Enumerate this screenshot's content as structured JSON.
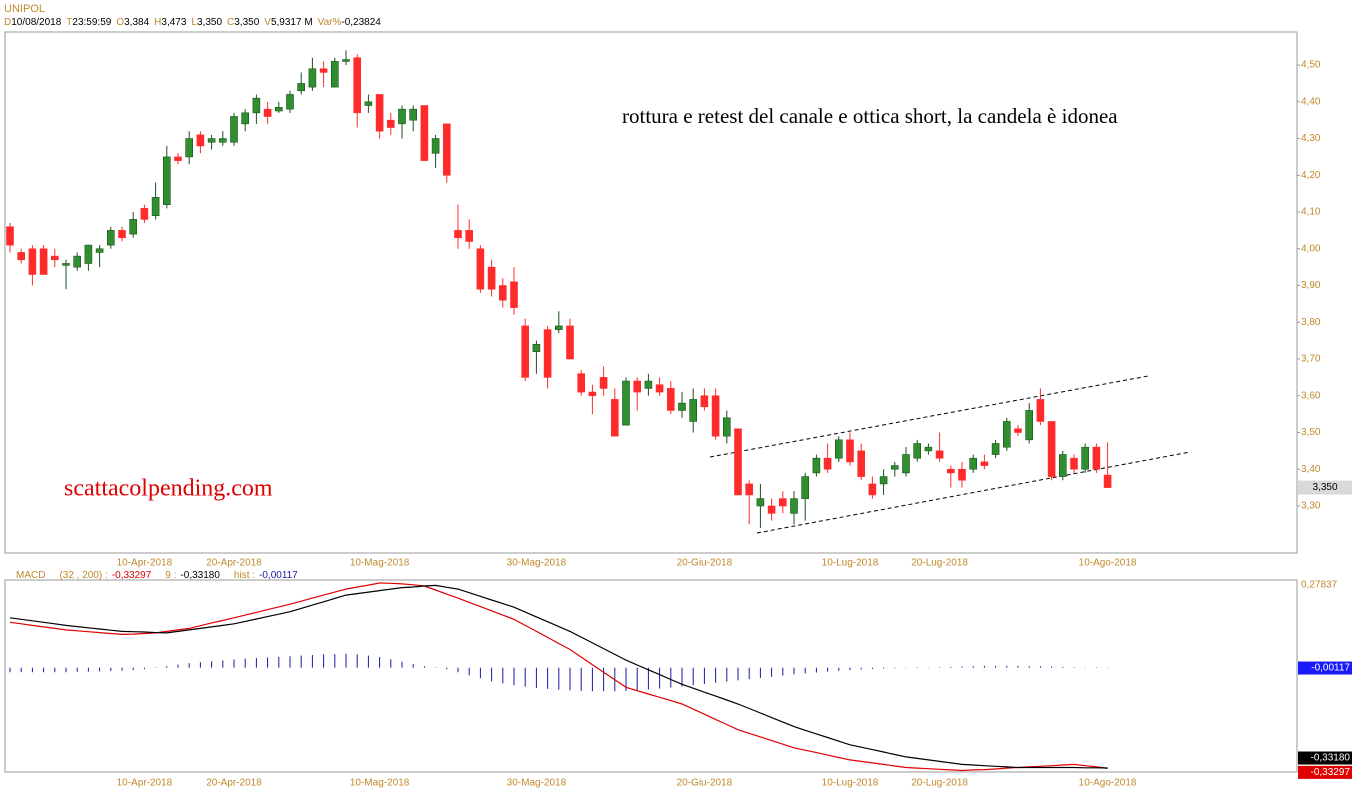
{
  "chart_data": [
    {
      "type": "candlestick",
      "title": "UNIPOL",
      "info": [
        [
          "D",
          "10/08/2018"
        ],
        [
          "T",
          "23:59:59"
        ],
        [
          "O",
          "3,384"
        ],
        [
          "H",
          "3,473"
        ],
        [
          "L",
          "3,350"
        ],
        [
          "C",
          "3,350"
        ],
        [
          "V",
          "5,9317 M"
        ],
        [
          "Var%",
          "-0,23824"
        ]
      ],
      "annotations": [
        "rottura e retest del canale e ottica short, la candela è idonea",
        "scattacolpending.com"
      ],
      "categories": [
        null,
        null,
        null,
        null,
        null,
        null,
        null,
        null,
        null,
        null,
        null,
        null,
        "10-Apr-2018",
        null,
        null,
        null,
        null,
        null,
        null,
        null,
        "20-Apr-2018",
        null,
        null,
        null,
        null,
        null,
        null,
        null,
        null,
        null,
        null,
        null,
        null,
        "10-Mag-2018",
        null,
        null,
        null,
        null,
        null,
        null,
        null,
        null,
        null,
        null,
        null,
        null,
        null,
        "30-Mag-2018",
        null,
        null,
        null,
        null,
        null,
        null,
        null,
        null,
        null,
        null,
        null,
        null,
        null,
        null,
        "20-Giu-2018",
        null,
        null,
        null,
        null,
        null,
        null,
        null,
        null,
        null,
        null,
        null,
        null,
        "10-Lug-2018",
        null,
        null,
        null,
        null,
        null,
        null,
        null,
        "20-Lug-2018",
        null,
        null,
        null,
        null,
        null,
        null,
        null,
        null,
        null,
        null,
        null,
        null,
        null,
        null,
        "10-Ago-2018"
      ],
      "open": [
        4.06,
        3.99,
        4.0,
        4.0,
        3.98,
        3.955,
        3.95,
        3.96,
        3.99,
        4.01,
        4.05,
        4.04,
        4.11,
        4.09,
        4.12,
        4.25,
        4.25,
        4.31,
        4.29,
        4.29,
        4.29,
        4.34,
        4.37,
        4.38,
        4.375,
        4.38,
        4.43,
        4.44,
        4.49,
        4.44,
        4.51,
        4.52,
        4.39,
        4.42,
        4.35,
        4.34,
        4.35,
        4.39,
        4.26,
        4.34,
        4.05,
        4.05,
        4.0,
        3.95,
        3.9,
        3.91,
        3.79,
        3.72,
        3.78,
        3.78,
        3.79,
        3.66,
        3.61,
        3.65,
        3.59,
        3.52,
        3.64,
        3.62,
        3.63,
        3.62,
        3.56,
        3.53,
        3.6,
        3.6,
        3.49,
        3.51,
        3.36,
        3.3,
        3.3,
        3.32,
        3.28,
        3.32,
        3.39,
        3.43,
        3.43,
        3.48,
        3.45,
        3.36,
        3.36,
        3.4,
        3.39,
        3.43,
        3.45,
        3.45,
        3.4,
        3.4,
        3.4,
        3.42,
        3.44,
        3.46,
        3.51,
        3.48,
        3.59,
        3.53,
        3.38,
        3.43,
        3.4,
        3.46,
        3.384
      ],
      "high": [
        4.07,
        4.0,
        4.01,
        4.01,
        4.0,
        3.97,
        3.99,
        4.01,
        4.01,
        4.06,
        4.06,
        4.1,
        4.12,
        4.18,
        4.28,
        4.26,
        4.32,
        4.32,
        4.31,
        4.32,
        4.37,
        4.38,
        4.42,
        4.4,
        4.4,
        4.43,
        4.48,
        4.52,
        4.51,
        4.52,
        4.54,
        4.53,
        4.42,
        4.42,
        4.37,
        4.39,
        4.39,
        4.39,
        4.31,
        4.34,
        4.12,
        4.08,
        4.01,
        3.97,
        3.92,
        3.95,
        3.81,
        3.75,
        3.79,
        3.83,
        3.81,
        3.67,
        3.63,
        3.68,
        3.62,
        3.65,
        3.65,
        3.66,
        3.65,
        3.64,
        3.61,
        3.62,
        3.62,
        3.62,
        3.56,
        3.51,
        3.37,
        3.36,
        3.32,
        3.34,
        3.34,
        3.39,
        3.44,
        3.47,
        3.49,
        3.5,
        3.47,
        3.38,
        3.4,
        3.42,
        3.46,
        3.48,
        3.47,
        3.5,
        3.41,
        3.42,
        3.44,
        3.44,
        3.48,
        3.54,
        3.52,
        3.58,
        3.62,
        3.53,
        3.45,
        3.44,
        3.47,
        3.47,
        3.473
      ],
      "low": [
        3.99,
        3.96,
        3.9,
        3.93,
        3.95,
        3.89,
        3.94,
        3.94,
        3.95,
        4.0,
        4.02,
        4.03,
        4.07,
        4.08,
        4.11,
        4.23,
        4.23,
        4.26,
        4.27,
        4.28,
        4.28,
        4.32,
        4.34,
        4.34,
        4.37,
        4.37,
        4.42,
        4.43,
        4.44,
        4.44,
        4.5,
        4.33,
        4.37,
        4.3,
        4.31,
        4.3,
        4.32,
        4.24,
        4.22,
        4.18,
        4.0,
        4.0,
        3.88,
        3.87,
        3.84,
        3.82,
        3.64,
        3.66,
        3.62,
        3.77,
        3.7,
        3.6,
        3.55,
        3.6,
        3.49,
        3.52,
        3.56,
        3.6,
        3.6,
        3.55,
        3.54,
        3.5,
        3.56,
        3.48,
        3.47,
        3.33,
        3.25,
        3.24,
        3.26,
        3.28,
        3.25,
        3.26,
        3.38,
        3.39,
        3.42,
        3.41,
        3.37,
        3.32,
        3.33,
        3.38,
        3.38,
        3.42,
        3.44,
        3.42,
        3.35,
        3.35,
        3.39,
        3.4,
        3.43,
        3.45,
        3.49,
        3.47,
        3.52,
        3.37,
        3.37,
        3.39,
        3.39,
        3.39,
        3.35
      ],
      "close": [
        4.01,
        3.97,
        3.93,
        3.93,
        3.97,
        3.96,
        3.98,
        4.01,
        4.0,
        4.05,
        4.03,
        4.08,
        4.08,
        4.14,
        4.25,
        4.24,
        4.3,
        4.28,
        4.3,
        4.3,
        4.36,
        4.37,
        4.41,
        4.36,
        4.385,
        4.42,
        4.45,
        4.49,
        4.48,
        4.51,
        4.515,
        4.37,
        4.4,
        4.32,
        4.33,
        4.38,
        4.38,
        4.24,
        4.3,
        4.2,
        4.03,
        4.02,
        3.89,
        3.89,
        3.86,
        3.84,
        3.65,
        3.74,
        3.65,
        3.79,
        3.7,
        3.61,
        3.6,
        3.62,
        3.49,
        3.64,
        3.61,
        3.64,
        3.61,
        3.56,
        3.58,
        3.59,
        3.57,
        3.49,
        3.54,
        3.33,
        3.33,
        3.32,
        3.28,
        3.3,
        3.32,
        3.38,
        3.43,
        3.4,
        3.48,
        3.42,
        3.38,
        3.33,
        3.38,
        3.41,
        3.44,
        3.47,
        3.46,
        3.43,
        3.39,
        3.37,
        3.43,
        3.41,
        3.47,
        3.53,
        3.5,
        3.56,
        3.53,
        3.38,
        3.44,
        3.4,
        3.46,
        3.4,
        3.35
      ],
      "up_color": "#2f8f2f",
      "down_color": "#ff2b2b",
      "ylim": [
        3.172,
        4.59
      ],
      "yticks": [
        {
          "value": 3.3,
          "label": "3,30"
        },
        {
          "value": 3.4,
          "label": "3,40"
        },
        {
          "value": 3.5,
          "label": "3,50"
        },
        {
          "value": 3.6,
          "label": "3,60"
        },
        {
          "value": 3.7,
          "label": "3,70"
        },
        {
          "value": 3.8,
          "label": "3,80"
        },
        {
          "value": 3.9,
          "label": "3,90"
        },
        {
          "value": 4.0,
          "label": "4,00"
        },
        {
          "value": 4.1,
          "label": "4,10"
        },
        {
          "value": 4.2,
          "label": "4,20"
        },
        {
          "value": 4.3,
          "label": "4,30"
        },
        {
          "value": 4.4,
          "label": "4,40"
        },
        {
          "value": 4.5,
          "label": "4,50"
        }
      ],
      "last": {
        "value": 3.35,
        "label": "3,350"
      }
    },
    {
      "type": "macd",
      "title": "MACD",
      "series": [
        {
          "name": "(32 , 200) :",
          "color": "#e00000",
          "last": {
            "value": -0.33297,
            "label": "-0,33297"
          },
          "values": [
            0.15,
            0.145,
            0.14,
            0.135,
            0.13,
            0.125,
            0.122,
            0.119,
            0.116,
            0.113,
            0.11,
            0.111,
            0.113,
            0.115,
            0.12,
            0.125,
            0.13,
            0.139,
            0.148,
            0.156,
            0.165,
            0.174,
            0.183,
            0.192,
            0.201,
            0.21,
            0.22,
            0.23,
            0.24,
            0.25,
            0.26,
            0.267,
            0.273,
            0.28,
            0.279,
            0.277,
            0.274,
            0.27,
            0.257,
            0.243,
            0.23,
            0.216,
            0.202,
            0.188,
            0.174,
            0.16,
            0.14,
            0.12,
            0.1,
            0.08,
            0.06,
            0.035,
            0.01,
            -0.015,
            -0.04,
            -0.065,
            -0.076,
            -0.087,
            -0.098,
            -0.109,
            -0.12,
            -0.137,
            -0.154,
            -0.171,
            -0.188,
            -0.205,
            -0.217,
            -0.229,
            -0.241,
            -0.253,
            -0.265,
            -0.273,
            -0.281,
            -0.289,
            -0.297,
            -0.305,
            -0.31,
            -0.315,
            -0.32,
            -0.325,
            -0.33,
            -0.332,
            -0.334,
            -0.336,
            -0.338,
            -0.34,
            -0.338,
            -0.337,
            -0.335,
            -0.332,
            -0.33,
            -0.328,
            -0.326,
            -0.324,
            -0.322,
            -0.32,
            -0.324,
            -0.328,
            -0.33297
          ]
        },
        {
          "name": "9 :",
          "color": "#000000",
          "last": {
            "value": -0.3318,
            "label": "-0,33180"
          },
          "values": [
            0.165,
            0.16,
            0.155,
            0.15,
            0.145,
            0.14,
            0.136,
            0.132,
            0.128,
            0.124,
            0.12,
            0.119,
            0.118,
            0.116,
            0.115,
            0.12,
            0.125,
            0.13,
            0.135,
            0.14,
            0.145,
            0.153,
            0.161,
            0.169,
            0.177,
            0.185,
            0.196,
            0.207,
            0.218,
            0.229,
            0.24,
            0.245,
            0.25,
            0.255,
            0.26,
            0.265,
            0.267,
            0.27,
            0.272,
            0.266,
            0.26,
            0.248,
            0.236,
            0.224,
            0.212,
            0.2,
            0.184,
            0.168,
            0.152,
            0.136,
            0.12,
            0.101,
            0.082,
            0.063,
            0.044,
            0.025,
            0.009,
            -0.007,
            -0.023,
            -0.039,
            -0.055,
            -0.068,
            -0.081,
            -0.094,
            -0.107,
            -0.12,
            -0.135,
            -0.15,
            -0.165,
            -0.18,
            -0.195,
            -0.207,
            -0.219,
            -0.231,
            -0.243,
            -0.255,
            -0.263,
            -0.271,
            -0.279,
            -0.287,
            -0.295,
            -0.3,
            -0.305,
            -0.31,
            -0.315,
            -0.32,
            -0.322,
            -0.324,
            -0.326,
            -0.328,
            -0.33,
            -0.33,
            -0.33,
            -0.33,
            -0.33,
            -0.33,
            -0.331,
            -0.331,
            -0.3318
          ]
        }
      ],
      "hist": {
        "name": "hist :",
        "color": "#1a1aa8",
        "last": {
          "value": -0.00117,
          "label": "-0,00117"
        },
        "values": [
          -0.015,
          -0.015,
          -0.015,
          -0.015,
          -0.015,
          -0.015,
          -0.014,
          -0.013,
          -0.012,
          -0.011,
          -0.01,
          -0.008,
          -0.005,
          0.0,
          0.005,
          0.01,
          0.015,
          0.018,
          0.021,
          0.024,
          0.027,
          0.03,
          0.032,
          0.034,
          0.036,
          0.038,
          0.04,
          0.042,
          0.044,
          0.045,
          0.046,
          0.044,
          0.04,
          0.035,
          0.028,
          0.02,
          0.012,
          0.005,
          0.0,
          -0.005,
          -0.015,
          -0.025,
          -0.035,
          -0.045,
          -0.052,
          -0.058,
          -0.063,
          -0.067,
          -0.07,
          -0.073,
          -0.075,
          -0.077,
          -0.078,
          -0.078,
          -0.078,
          -0.077,
          -0.075,
          -0.072,
          -0.069,
          -0.066,
          -0.062,
          -0.058,
          -0.054,
          -0.05,
          -0.046,
          -0.042,
          -0.038,
          -0.034,
          -0.03,
          -0.026,
          -0.022,
          -0.019,
          -0.016,
          -0.013,
          -0.01,
          -0.008,
          -0.006,
          -0.004,
          -0.003,
          -0.002,
          -0.001,
          0.0,
          0.001,
          0.002,
          0.003,
          0.004,
          0.005,
          0.006,
          0.006,
          0.006,
          0.006,
          0.005,
          0.005,
          0.004,
          0.003,
          0.002,
          0.001,
          0.0,
          -0.00117
        ]
      },
      "max_label": {
        "value": 0.27837,
        "label": "0,27837"
      },
      "ylim": [
        -0.345,
        0.29
      ]
    }
  ]
}
